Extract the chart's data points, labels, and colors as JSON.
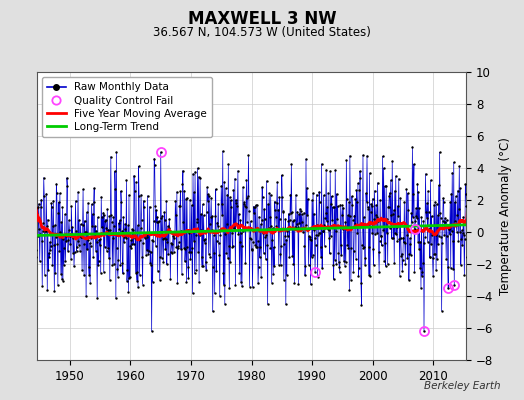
{
  "title": "MAXWELL 3 NW",
  "subtitle": "36.567 N, 104.573 W (United States)",
  "ylabel": "Temperature Anomaly (°C)",
  "watermark": "Berkeley Earth",
  "xlim": [
    1944.5,
    2015.5
  ],
  "ylim": [
    -8,
    10
  ],
  "yticks": [
    -8,
    -6,
    -4,
    -2,
    0,
    2,
    4,
    6,
    8,
    10
  ],
  "xticks": [
    1950,
    1960,
    1970,
    1980,
    1990,
    2000,
    2010
  ],
  "bg_color": "#e0e0e0",
  "plot_bg_color": "#ffffff",
  "raw_color": "#0000cc",
  "moving_avg_color": "#ff0000",
  "trend_color": "#00cc00",
  "qc_fail_color": "#ff44ff",
  "seed": 137,
  "start_year": 1944.083,
  "end_year": 2015.0,
  "noise_std": 1.85,
  "trend_slope": 0.014,
  "trend_intercept": -0.35
}
